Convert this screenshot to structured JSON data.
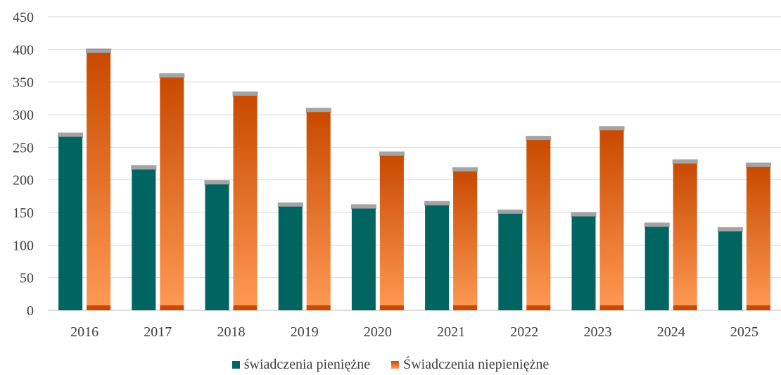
{
  "chart_data": {
    "type": "bar",
    "categories": [
      "2016",
      "2017",
      "2018",
      "2019",
      "2020",
      "2021",
      "2022",
      "2023",
      "2024",
      "2025"
    ],
    "series": [
      {
        "name": "świadczenia pieniężne",
        "values": [
          266,
          216,
          193,
          159,
          156,
          161,
          148,
          144,
          128,
          121
        ],
        "color": "#006560"
      },
      {
        "name": "Świadczenia niepieniężne",
        "values": [
          395,
          357,
          329,
          304,
          237,
          213,
          261,
          276,
          225,
          220
        ],
        "color_top": "#C94A00",
        "color_bottom": "#FF9A55"
      }
    ],
    "ylim": [
      0,
      450
    ],
    "yticks": [
      0,
      50,
      100,
      150,
      200,
      250,
      300,
      350,
      400,
      450
    ],
    "grid": true,
    "legend_position": "bottom",
    "title": "",
    "xlabel": "",
    "ylabel": ""
  }
}
